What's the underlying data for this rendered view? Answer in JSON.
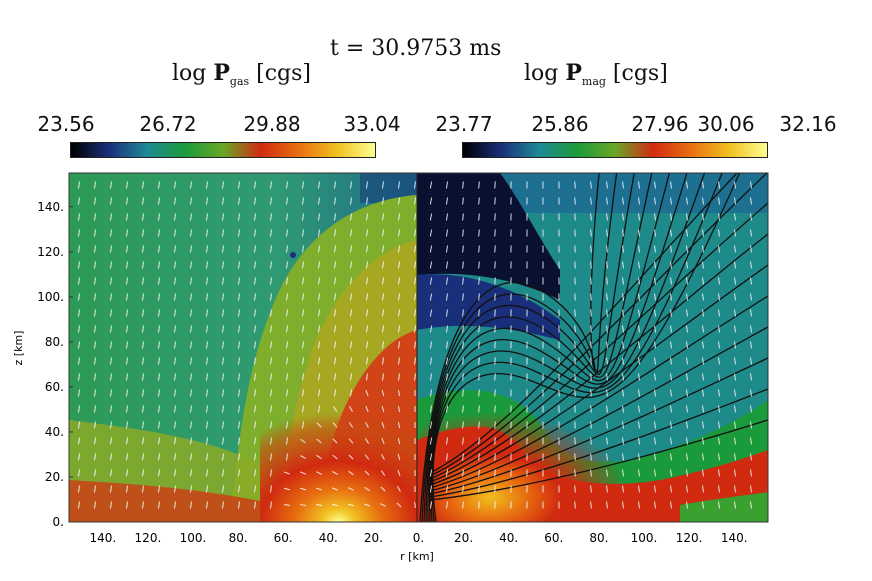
{
  "time_label": "t = 30.9753 ms",
  "colorbars": [
    {
      "name": "gas-pressure",
      "title_prefix": "log ",
      "title_symbol": "P",
      "title_sub": "gas",
      "title_unit": " [cgs]",
      "ticks": [
        "23.56",
        "26.72",
        "29.88",
        "33.04"
      ],
      "range": [
        23.56,
        33.04
      ]
    },
    {
      "name": "magnetic-pressure",
      "title_prefix": "log ",
      "title_symbol": "P",
      "title_sub": "mag",
      "title_unit": " [cgs]",
      "ticks": [
        "23.77",
        "25.86",
        "27.96",
        "30.06",
        "32.16"
      ],
      "range": [
        23.77,
        32.16
      ]
    }
  ],
  "colormap": [
    "#000000",
    "#1a2f7a",
    "#1f8a96",
    "#1a9a3a",
    "#6aa728",
    "#d02a10",
    "#e87010",
    "#f0c020",
    "#ffff90"
  ],
  "chart_data": {
    "type": "heatmap",
    "xlabel": "r [km]",
    "ylabel": "z [km]",
    "xlim": [
      -155,
      155
    ],
    "ylim": [
      0,
      155
    ],
    "x_tick_labels": [
      "140.",
      "120.",
      "100.",
      "80.",
      "60.",
      "40.",
      "20.",
      "0.",
      "20.",
      "40.",
      "60.",
      "80.",
      "100.",
      "120.",
      "140."
    ],
    "x_tick_values": [
      -140,
      -120,
      -100,
      -80,
      -60,
      -40,
      -20,
      0,
      20,
      40,
      60,
      80,
      100,
      120,
      140
    ],
    "y_tick_labels": [
      "0.",
      "20.",
      "40.",
      "60.",
      "80.",
      "100.",
      "120.",
      "140."
    ],
    "y_tick_values": [
      0,
      20,
      40,
      60,
      80,
      100,
      120,
      140
    ],
    "left_panel": "log P_gas with velocity vectors",
    "right_panel": "log P_mag with velocity vectors and magnetic field lines"
  }
}
